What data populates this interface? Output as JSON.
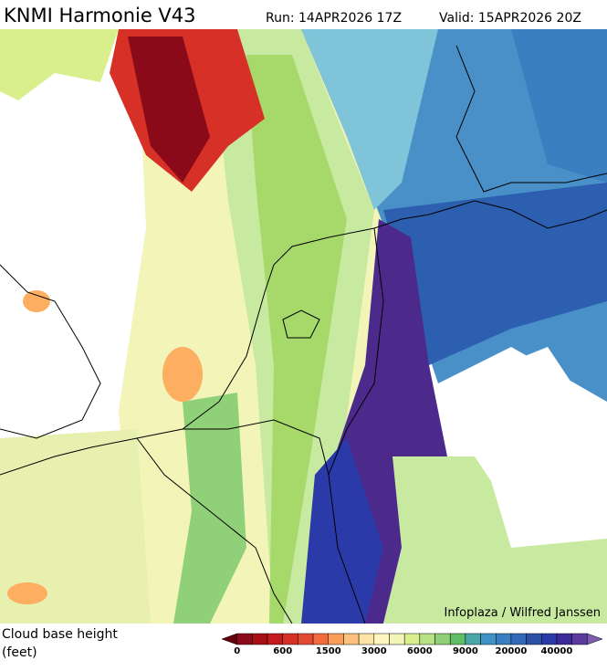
{
  "header": {
    "title": "KNMI Harmonie V43",
    "run": "Run: 14APR2026 17Z",
    "valid": "Valid: 15APR2026 20Z"
  },
  "credit": "Infoplaza / Wilfred Janssen",
  "legend": {
    "label_line1": "Cloud base height",
    "label_line2": "(feet)",
    "colors": [
      "#67000d",
      "#8b0a1a",
      "#a50f15",
      "#c21a1f",
      "#d73027",
      "#e34a33",
      "#f16b3c",
      "#f99d59",
      "#fdc07e",
      "#fee3a6",
      "#fff5c0",
      "#f2f4b8",
      "#d9ef8b",
      "#b8e186",
      "#8fd078",
      "#5fbf69",
      "#4aa8a8",
      "#3f93c6",
      "#3a7fc0",
      "#3268b8",
      "#2c50a8",
      "#2a3aa8",
      "#3d2a98",
      "#5a3a9c",
      "#7e5cb0"
    ],
    "ticks": [
      0,
      600,
      1500,
      3000,
      6000,
      9000,
      20000,
      40000
    ]
  }
}
